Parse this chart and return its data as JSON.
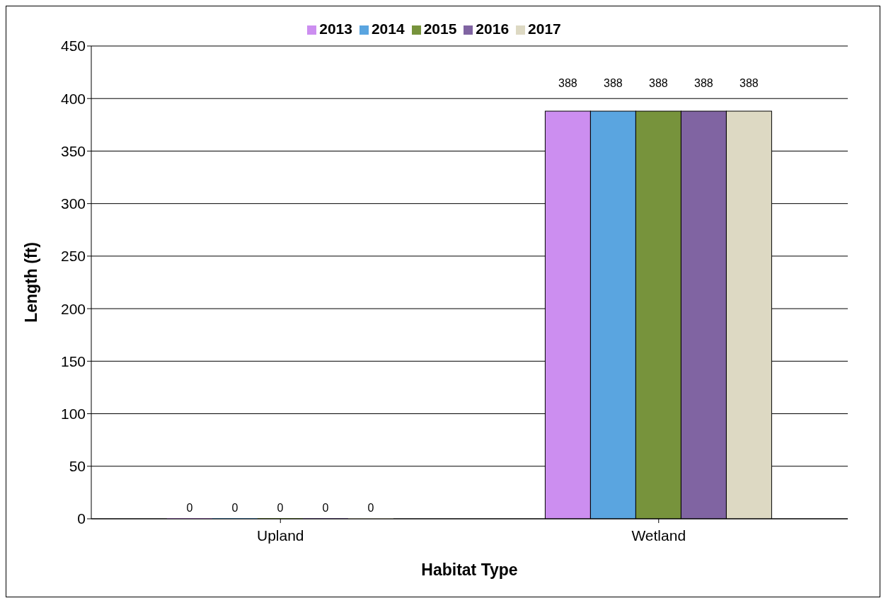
{
  "chart_data": {
    "type": "bar",
    "xlabel": "Habitat Type",
    "ylabel": "Length (ft)",
    "categories": [
      "Upland",
      "Wetland"
    ],
    "series": [
      {
        "name": "2013",
        "color": "#cc8ef0",
        "values": [
          0,
          388
        ]
      },
      {
        "name": "2014",
        "color": "#5aa5e0",
        "values": [
          0,
          388
        ]
      },
      {
        "name": "2015",
        "color": "#77933c",
        "values": [
          0,
          388
        ]
      },
      {
        "name": "2016",
        "color": "#8064a2",
        "values": [
          0,
          388
        ]
      },
      {
        "name": "2017",
        "color": "#ddd9c3",
        "values": [
          0,
          388
        ]
      }
    ],
    "ylim": [
      0,
      450
    ],
    "yticks": [
      0,
      50,
      100,
      150,
      200,
      250,
      300,
      350,
      400,
      450
    ],
    "grid": "y",
    "legend": "top",
    "data_labels": true
  }
}
